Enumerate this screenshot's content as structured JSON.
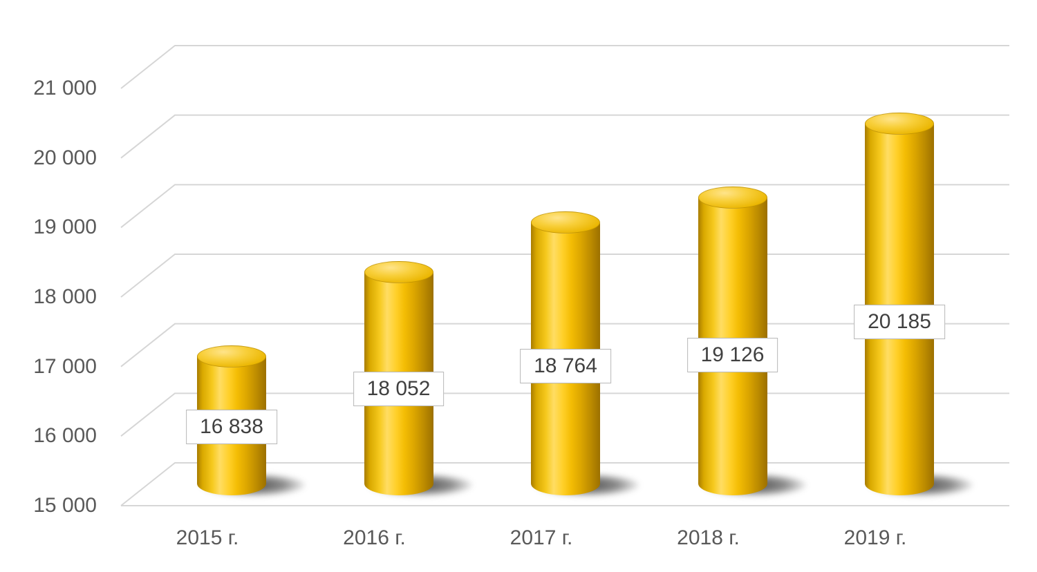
{
  "chart_data": {
    "type": "bar",
    "subtype": "3d-cylinder",
    "title": "",
    "xlabel": "",
    "ylabel": "",
    "categories": [
      "2015 г.",
      "2016 г.",
      "2017 г.",
      "2018 г.",
      "2019 г."
    ],
    "values": [
      16838,
      18052,
      18764,
      19126,
      20185
    ],
    "data_labels": [
      "16 838",
      "18 052",
      "18 764",
      "19 126",
      "20 185"
    ],
    "ylim": [
      15000,
      21000
    ],
    "ytick_step": 1000,
    "ytick_values": [
      15000,
      16000,
      17000,
      18000,
      19000,
      20000,
      21000
    ],
    "ytick_labels": [
      "15 000",
      "16 000",
      "17 000",
      "18 000",
      "19 000",
      "20 000",
      "21 000"
    ],
    "grid": true,
    "legend": false,
    "colors": {
      "bar_fill": "#F2BD04",
      "bar_highlight": "#FFDD63",
      "bar_edge": "#9C7000",
      "shadow": "#2D2D2D",
      "gridline": "#D6D6D6",
      "tick_text": "#595959",
      "label_text": "#404040",
      "label_box_border": "#B7B7B7",
      "label_box_fill": "#FFFFFF",
      "background": "#FFFFFF"
    }
  }
}
